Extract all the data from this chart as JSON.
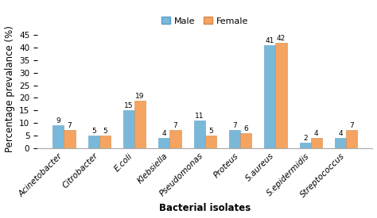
{
  "categories": [
    "Acinetobacter",
    "Citrobacter",
    "E.coli",
    "Klebsiella",
    "Pseudomonas",
    "Proteus",
    "S.aureus",
    "S.epidermidis",
    "Streptococcus"
  ],
  "male_values": [
    9,
    5,
    15,
    4,
    11,
    7,
    41,
    2,
    4
  ],
  "female_values": [
    7,
    5,
    19,
    7,
    5,
    6,
    42,
    4,
    7
  ],
  "male_color": "#7AB8D9",
  "female_color": "#F4A460",
  "male_edge_color": "#5A9EC8",
  "female_edge_color": "#D4884A",
  "ylabel": "Percentage prevalance (%)",
  "xlabel": "Bacterial isolates",
  "legend_male": "Male",
  "legend_female": "Female",
  "ylim": [
    0,
    47
  ],
  "yticks": [
    0,
    5,
    10,
    15,
    20,
    25,
    30,
    35,
    40,
    45
  ],
  "bar_width": 0.32,
  "annotation_fontsize": 6.5,
  "axis_label_fontsize": 8.5,
  "tick_fontsize": 7.5,
  "legend_fontsize": 8,
  "background_color": "#ffffff"
}
